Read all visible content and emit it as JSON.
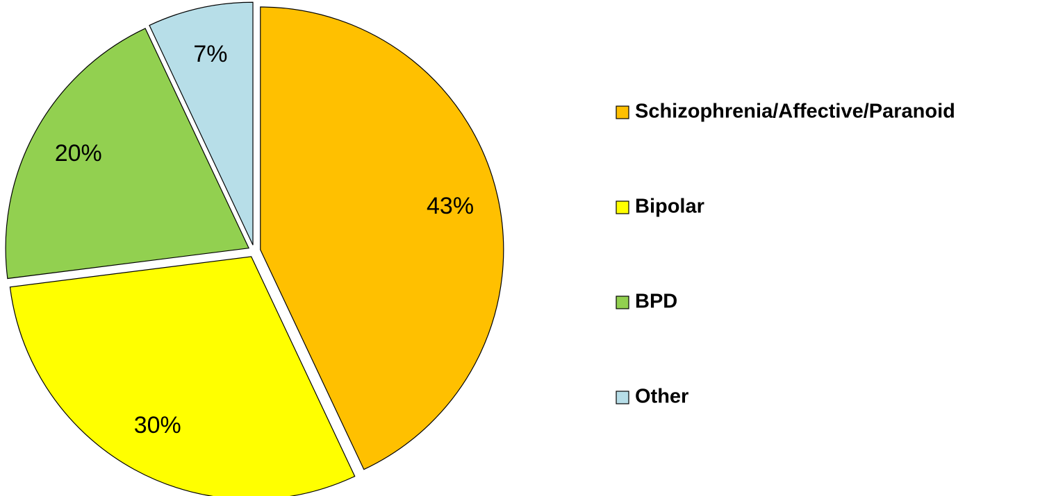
{
  "chart_data": {
    "type": "pie",
    "categories": [
      "Schizophrenia/Affective/Paranoid",
      "Bipolar",
      "BPD",
      "Other"
    ],
    "values": [
      43,
      30,
      20,
      7
    ],
    "value_labels": [
      "43%",
      "30%",
      "20%",
      "7%"
    ],
    "colors": [
      "#FFC000",
      "#FFFF00",
      "#92D050",
      "#B7DEE8"
    ],
    "legend": "right"
  }
}
